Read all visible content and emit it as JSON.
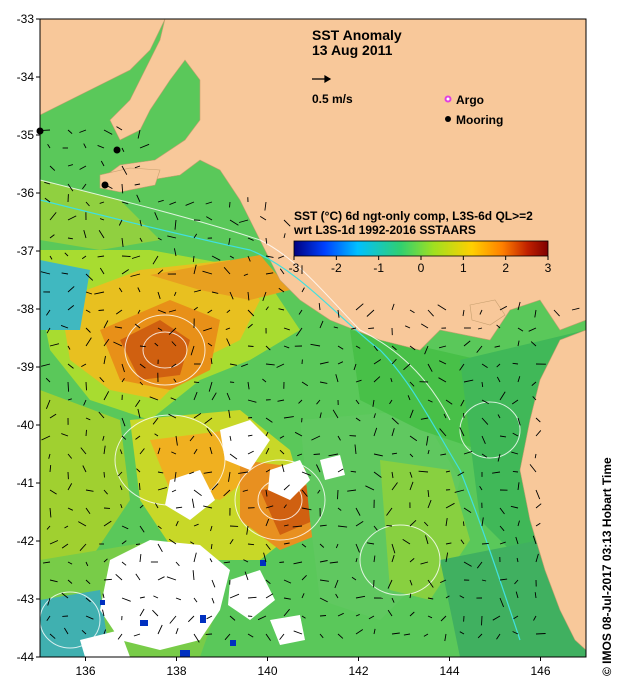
{
  "title": "SST Anomaly",
  "date": "13 Aug 2011",
  "vector_scale_label": "0.5 m/s",
  "legend": {
    "argo_label": "Argo",
    "mooring_label": "Mooring",
    "argo_color": "#e040e0",
    "mooring_color": "#000000"
  },
  "colorbar": {
    "title_line1": "SST (°C) 6d ngt-only comp, L3S-6d QL>=2",
    "title_line2": "wrt L3S-1d 1992-2016 SSTAARS",
    "ticks": [
      "-3",
      "-2",
      "-1",
      "0",
      "1",
      "2",
      "3"
    ],
    "colors": [
      "#00007f",
      "#0040ff",
      "#00c0ff",
      "#30d070",
      "#a0e020",
      "#ffd000",
      "#ff8000",
      "#c02000",
      "#7f0000"
    ]
  },
  "axes": {
    "lat_ticks": [
      "-33",
      "-34",
      "-35",
      "-36",
      "-37",
      "-38",
      "-39",
      "-40",
      "-41",
      "-42",
      "-43",
      "-44"
    ],
    "lon_ticks": [
      "136",
      "138",
      "140",
      "142",
      "144",
      "146"
    ],
    "lat_range": [
      -44,
      -33
    ],
    "lon_range": [
      135,
      147
    ]
  },
  "credit": "©  IMOS 08-Jul-2017 03:13 Hobart Time",
  "colors": {
    "land": "#f8c89a",
    "ocean_base": "#58c858",
    "background": "#ffffff"
  }
}
